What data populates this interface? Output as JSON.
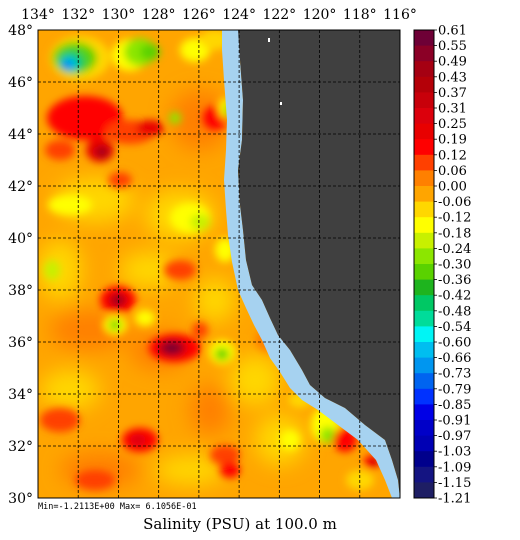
{
  "map": {
    "longitude_ticks": [
      "134°",
      "132°",
      "130°",
      "128°",
      "126°",
      "124°",
      "122°",
      "120°",
      "118°",
      "116°"
    ],
    "latitude_ticks": [
      "48°",
      "46°",
      "44°",
      "42°",
      "40°",
      "38°",
      "36°",
      "34°",
      "32°",
      "30°"
    ],
    "stats_label": "Min=-1.2113E+00  Max= 6.1056E-01",
    "caption": "Salinity (PSU) at 100.0 m",
    "land_color": "#404040",
    "ocean_base_color": "#ffa500"
  },
  "colorbar": {
    "labels": [
      "0.61",
      "0.55",
      "0.49",
      "0.43",
      "0.37",
      "0.31",
      "0.25",
      "0.19",
      "0.12",
      "0.06",
      "0.00",
      "-0.06",
      "-0.12",
      "-0.18",
      "-0.24",
      "-0.30",
      "-0.36",
      "-0.42",
      "-0.48",
      "-0.54",
      "-0.60",
      "-0.66",
      "-0.73",
      "-0.79",
      "-0.85",
      "-0.91",
      "-0.97",
      "-1.03",
      "-1.09",
      "-1.15",
      "-1.21"
    ],
    "colors": [
      "#6e0036",
      "#8b0026",
      "#a50012",
      "#b40008",
      "#c8000a",
      "#dc000c",
      "#e80000",
      "#ff0000",
      "#ff4000",
      "#ff8000",
      "#ffa500",
      "#ffd700",
      "#ffff00",
      "#c8f000",
      "#8ce600",
      "#5ad200",
      "#1eb41e",
      "#00c864",
      "#00dc9a",
      "#00f5f5",
      "#00bef0",
      "#0096f0",
      "#0064f0",
      "#0032ff",
      "#0000e6",
      "#0000c8",
      "#0000b4",
      "#00008c",
      "#141482",
      "#1e1e64"
    ]
  },
  "chart_data": {
    "type": "heatmap",
    "title": "Salinity (PSU) at 100.0 m",
    "xlabel": "",
    "ylabel": "",
    "x_range": [
      -134,
      -116
    ],
    "y_range": [
      30,
      48
    ],
    "min": -1.2113,
    "max": 0.61056,
    "features": [
      {
        "lon": -132.6,
        "lat": 46.8,
        "value": -0.7
      },
      {
        "lon": -132.2,
        "lat": 47.1,
        "value": -0.3
      },
      {
        "lon": -129.8,
        "lat": 47.2,
        "value": -0.18
      },
      {
        "lon": -128.6,
        "lat": 47.0,
        "value": -0.24
      },
      {
        "lon": -132.5,
        "lat": 45.0,
        "value": 0.25
      },
      {
        "lon": -130.3,
        "lat": 44.5,
        "value": 0.19
      },
      {
        "lon": -131.7,
        "lat": 43.6,
        "value": 0.37
      },
      {
        "lon": -126.2,
        "lat": 44.4,
        "value": 0.19
      },
      {
        "lon": -124.5,
        "lat": 45.2,
        "value": -0.24
      },
      {
        "lon": -129.2,
        "lat": 38.2,
        "value": 0.43
      },
      {
        "lon": -128.8,
        "lat": 37.2,
        "value": -0.18
      },
      {
        "lon": -126.8,
        "lat": 36.3,
        "value": 0.55
      },
      {
        "lon": -125.5,
        "lat": 36.1,
        "value": -0.3
      },
      {
        "lon": -126.2,
        "lat": 32.5,
        "value": 0.25
      },
      {
        "lon": -122.2,
        "lat": 32.8,
        "value": -0.24
      },
      {
        "lon": -119.3,
        "lat": 32.2,
        "value": -0.3
      },
      {
        "lon": -117.7,
        "lat": 31.6,
        "value": 0.37
      }
    ]
  }
}
